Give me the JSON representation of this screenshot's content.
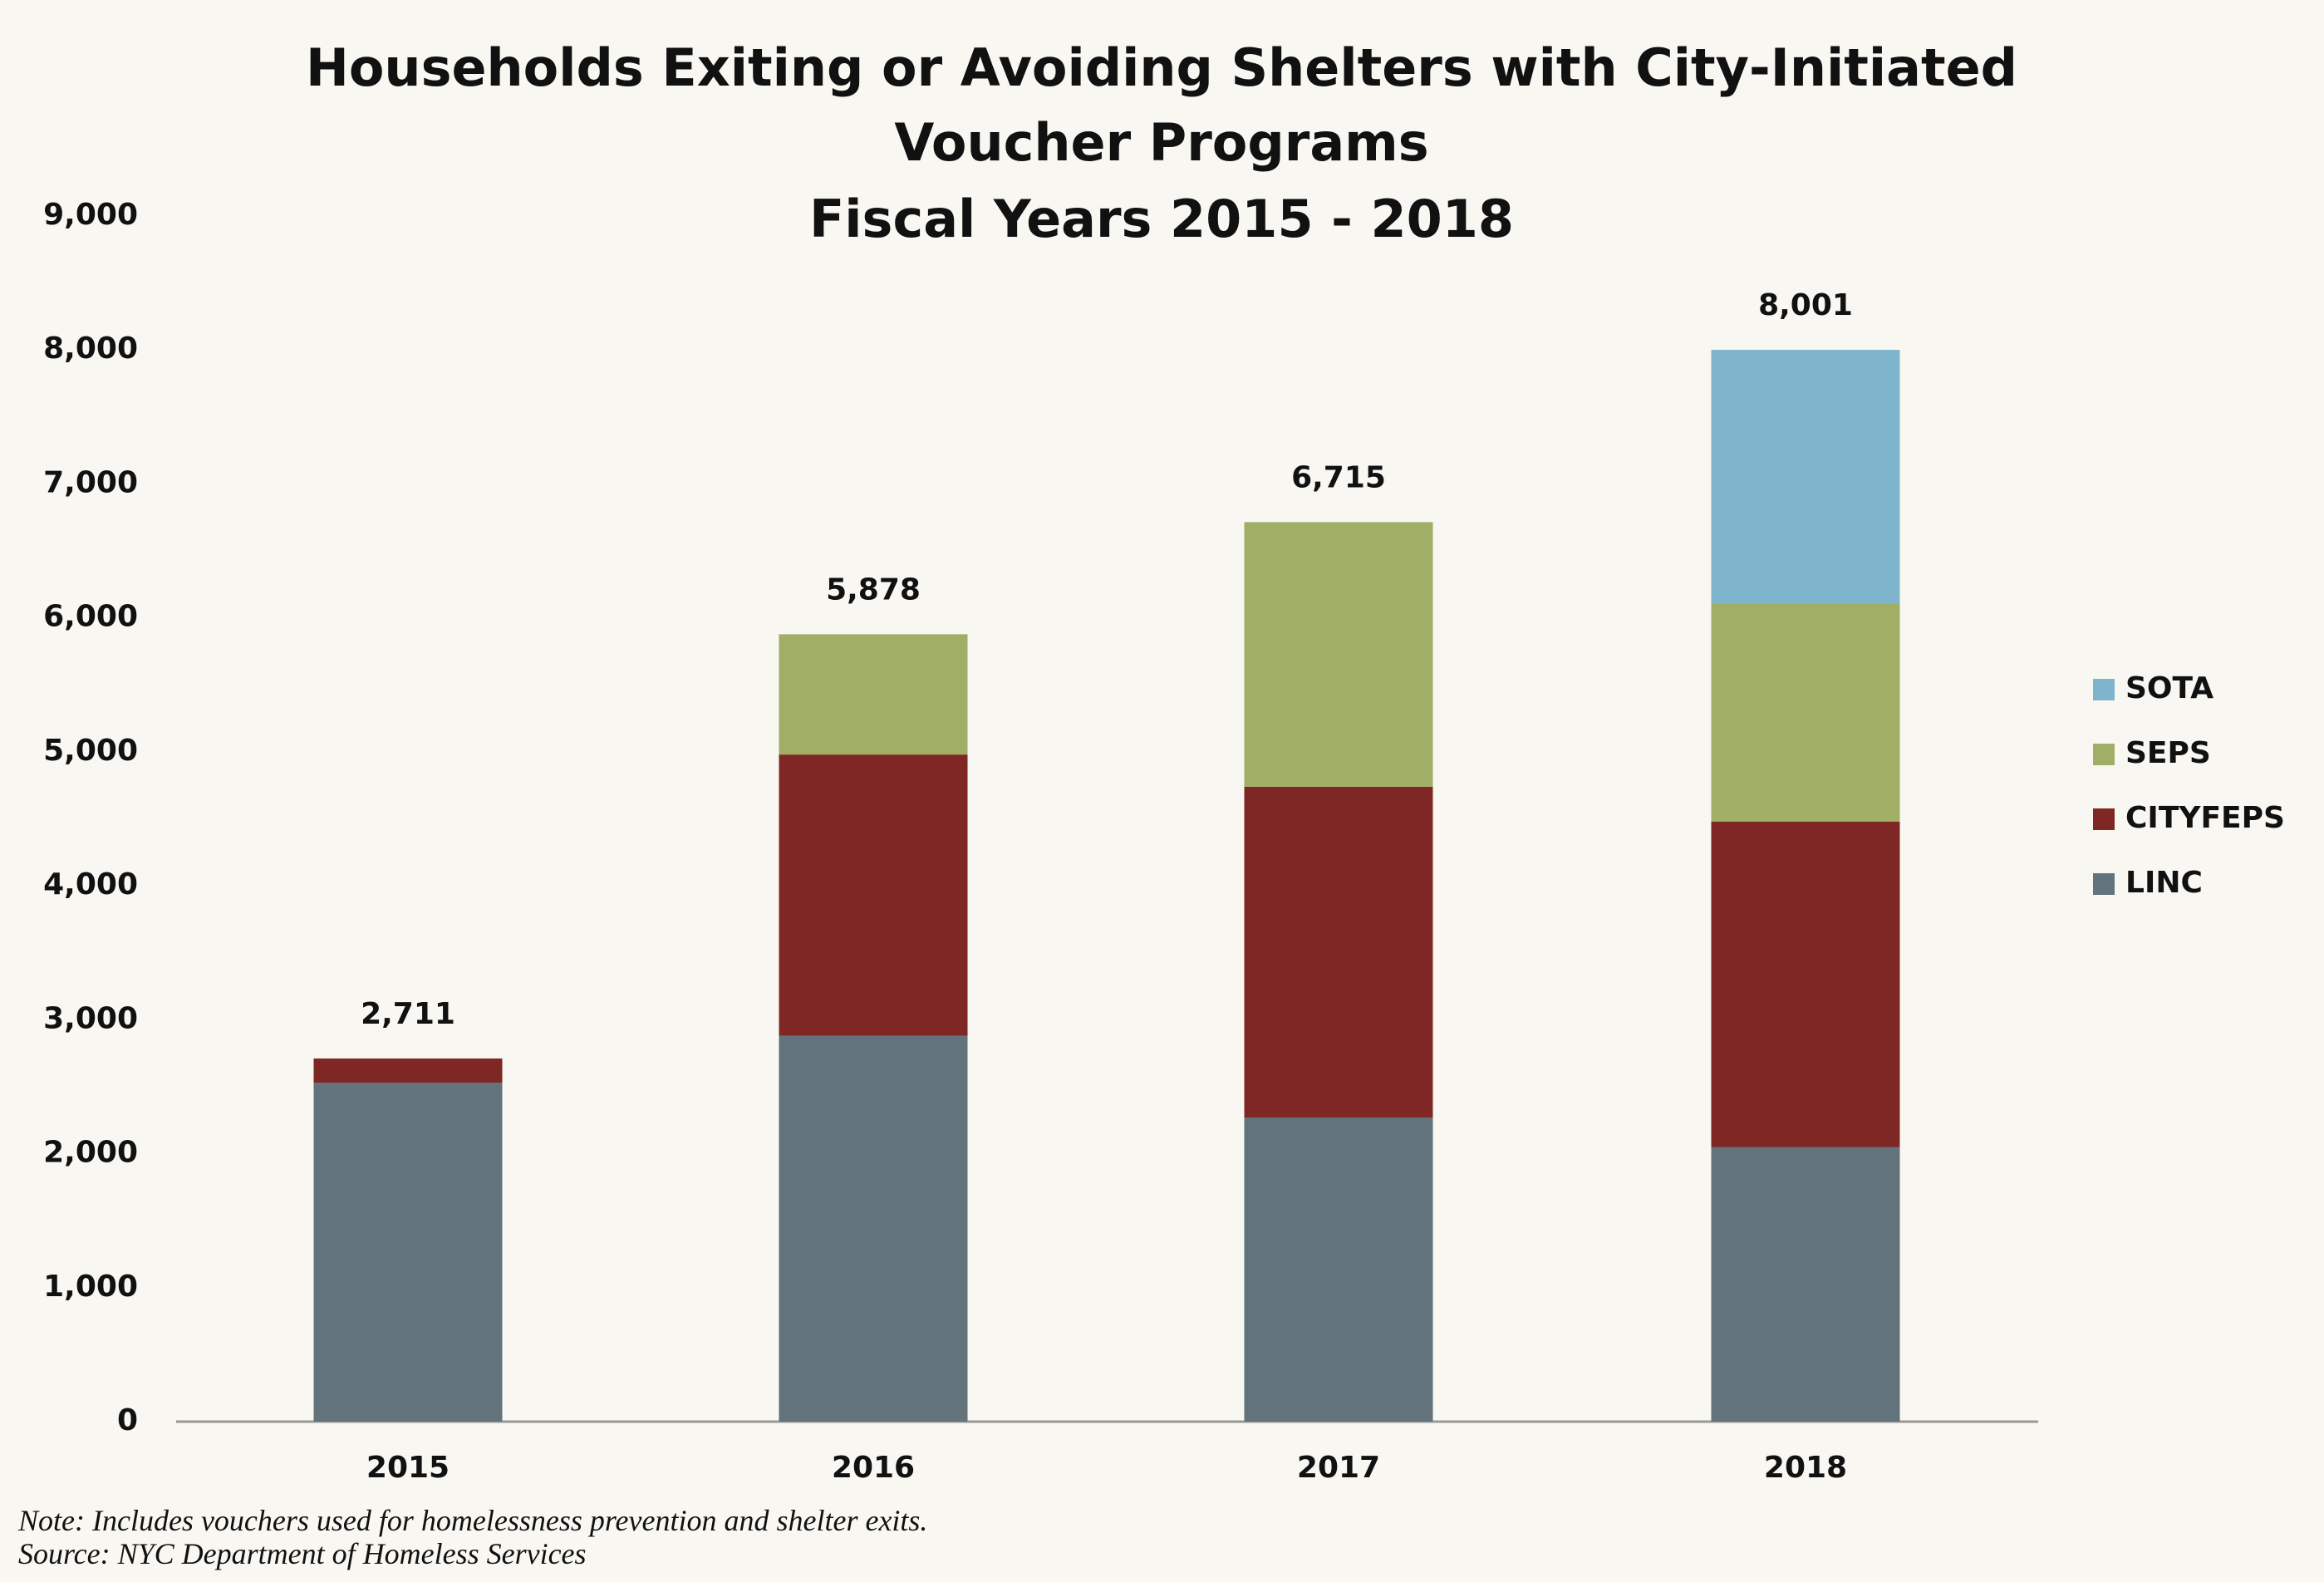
{
  "chart_data": {
    "type": "stacked_bar",
    "title": [
      "Households Exiting or Avoiding Shelters with City-Initiated",
      "Voucher Programs",
      "Fiscal Years 2015 - 2018"
    ],
    "categories": [
      "2015",
      "2016",
      "2017",
      "2018"
    ],
    "series": [
      {
        "name": "LINC",
        "color": "#62737b",
        "values": [
          2530,
          2880,
          2270,
          2050
        ]
      },
      {
        "name": "CITYFEPS",
        "color": "#7f2725",
        "values": [
          181,
          2100,
          2470,
          2430
        ]
      },
      {
        "name": "SEPS",
        "color": "#a0ae66",
        "values": [
          null,
          898,
          1975,
          1630
        ]
      },
      {
        "name": "SOTA",
        "color": "#7fb5cc",
        "values": [
          null,
          null,
          null,
          1891
        ]
      }
    ],
    "totals": {
      "values": [
        2711,
        5878,
        6715,
        8001
      ],
      "value_labels": [
        "2,711",
        "5,878",
        "6,715",
        "8,001"
      ]
    },
    "ylim": [
      0,
      9000
    ],
    "yticks": [
      0,
      {
        "value": 1000,
        "label": "1,000"
      },
      {
        "value": 2000,
        "label": "2,000"
      },
      {
        "value": 3000,
        "label": "3,000"
      },
      {
        "value": 4000,
        "label": "4,000"
      },
      {
        "value": 5000,
        "label": "5,000"
      },
      {
        "value": 6000,
        "label": "6,000"
      },
      {
        "value": 7000,
        "label": "7,000"
      },
      {
        "value": 8000,
        "label": "8,000"
      },
      {
        "value": 9000,
        "label": "9,000"
      }
    ],
    "grid": false,
    "legend": "right",
    "note": "Note: Includes vouchers used for homelessness prevention and shelter exits.",
    "source": "Source: NYC Department of Homeless Services"
  }
}
